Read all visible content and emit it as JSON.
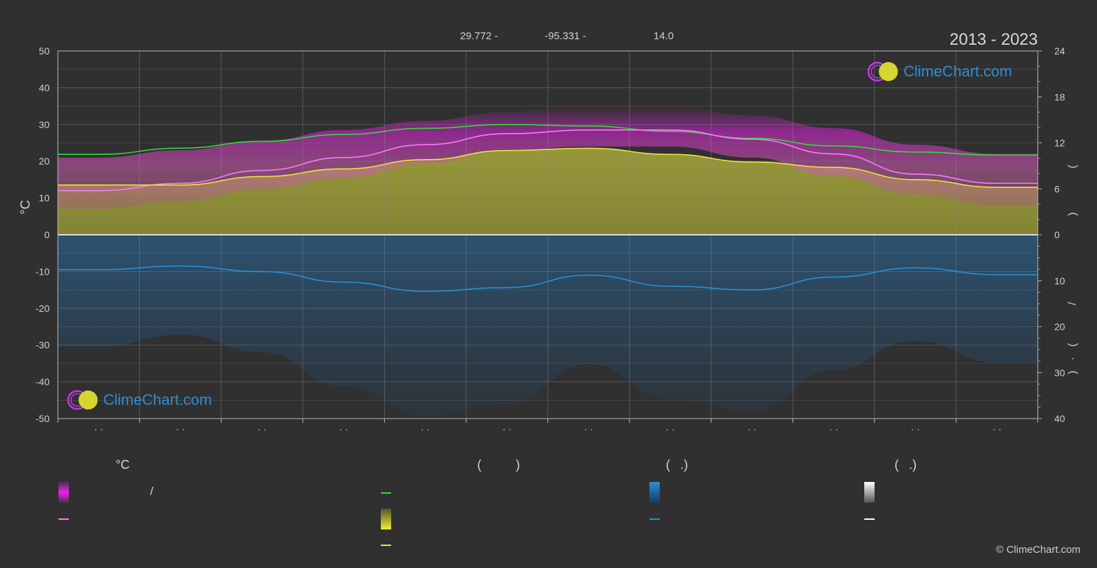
{
  "header": {
    "latitude": "29.772 -",
    "longitude": "-95.331 -",
    "elevation": "14.0",
    "year_range": "2013 - 2023"
  },
  "brand": {
    "text": "ClimeChart.com",
    "copyright": "© ClimeChart.com"
  },
  "colors": {
    "background": "#303030",
    "daylight": "#33dd33",
    "sunshine": "#e8e838",
    "temp_band": "#dd22dd",
    "temp_mean": "#ff77ff",
    "rain": "#2a8fd8",
    "snow": "#ffffff",
    "brand": "#2a8fd8"
  },
  "chart_data": {
    "type": "line",
    "months": 12,
    "x": [
      0.5,
      1.5,
      2.5,
      3.5,
      4.5,
      5.5,
      6.5,
      7.5,
      8.5,
      9.5,
      10.5,
      11.5
    ],
    "y_left": {
      "label": "°C",
      "ylim": [
        -50,
        50
      ],
      "ticks": [
        "50",
        "40",
        "30",
        "20",
        "10",
        "0",
        "-10",
        "-20",
        "-30",
        "-40",
        "-50"
      ]
    },
    "y_right_top": {
      "ylim": [
        0,
        24
      ],
      "ticks": [
        "24",
        "18",
        "12",
        "6",
        "0"
      ]
    },
    "y_right_bottom": {
      "ylim": [
        0,
        40
      ],
      "ticks": [
        "10",
        "20",
        "30",
        "40"
      ]
    },
    "x_tick_labels": [
      "· ·",
      "· ·",
      "· ·",
      "· ·",
      "· ·",
      "· ·",
      "· ·",
      "· ·",
      "· ·",
      "· ·",
      "· ·",
      "· ·"
    ],
    "right_axis_glyphs": [
      "(",
      ")",
      "/",
      "(",
      "·",
      ")"
    ],
    "series": [
      {
        "key": "daylight",
        "axis": "right_top",
        "values": [
          10.5,
          11.3,
          12.2,
          13.1,
          13.9,
          14.4,
          14.2,
          13.5,
          12.6,
          11.6,
          10.8,
          10.4
        ]
      },
      {
        "key": "temp_mean",
        "axis": "left",
        "values": [
          12,
          14,
          17.5,
          21,
          24.5,
          27.5,
          28.5,
          28.5,
          26,
          22,
          16.5,
          14
        ]
      },
      {
        "key": "sunshine",
        "axis": "right_top",
        "values": [
          6.5,
          6.5,
          7.6,
          8.6,
          9.8,
          11.0,
          11.3,
          10.5,
          9.5,
          8.8,
          7.2,
          6.2
        ]
      },
      {
        "key": "rain_avg",
        "axis": "right_bottom",
        "values": [
          7.6,
          6.8,
          8.0,
          10.3,
          12.3,
          11.5,
          8.8,
          11.2,
          12.0,
          9.2,
          7.2,
          8.7
        ]
      }
    ],
    "temp_band_max": [
      21,
      23,
      25.5,
      28.5,
      31,
      33.5,
      35,
      35,
      32.5,
      29,
      24.5,
      22
    ],
    "temp_band_min": [
      7,
      9,
      12.5,
      15.5,
      19.5,
      23,
      24,
      24,
      21,
      16,
      11,
      8
    ]
  },
  "legend": {
    "col1": {
      "header": "°C",
      "item1": "/"
    },
    "col2": {
      "header": "(          )"
    },
    "col3": {
      "header": "(   .)"
    },
    "col4": {
      "header": "(   .)"
    }
  }
}
